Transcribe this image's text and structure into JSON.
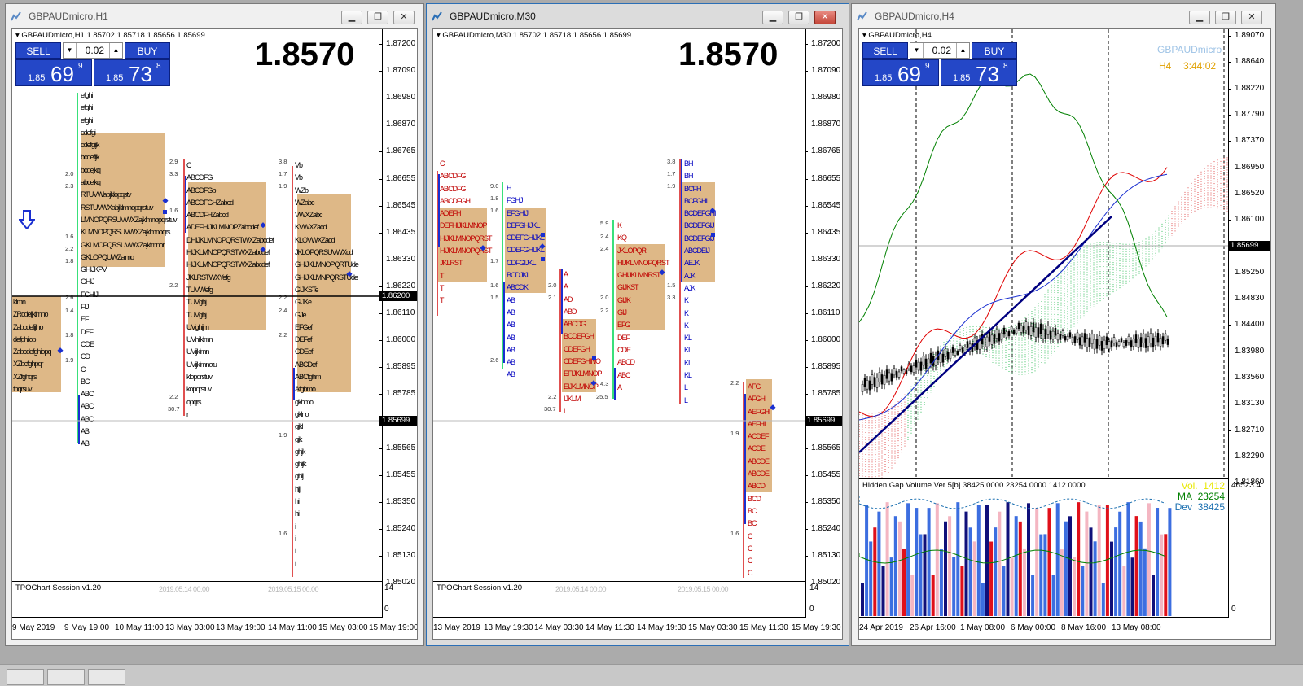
{
  "windows": [
    {
      "title": "GBPAUDmicro,H1",
      "symbol_line": "GBPAUDmicro,H1  1.85702 1.85718 1.85656 1.85699",
      "big_price": "1.8570",
      "prices": [
        "1.87200",
        "1.87090",
        "1.86980",
        "1.86870",
        "1.86765",
        "1.86655",
        "1.86545",
        "1.86435",
        "1.86330",
        "1.86220",
        "1.86110",
        "1.86000",
        "1.85895",
        "1.85785",
        "1.85675",
        "1.85565",
        "1.85455",
        "1.85350",
        "1.85240",
        "1.85130",
        "1.85020"
      ],
      "current_tag": "1.85699",
      "hline_tag": "1.86200",
      "subscale": [
        "14",
        "0"
      ],
      "indicator": "TPOChart Session v1.20",
      "watermark": [
        "2019.05.14 00:00",
        "2019.05.15 00:00"
      ],
      "dates": [
        "9 May 2019",
        "9 May 19:00",
        "10 May 11:00",
        "13 May 03:00",
        "13 May 19:00",
        "14 May 11:00",
        "15 May 03:00",
        "15 May 19:00"
      ]
    },
    {
      "title": "GBPAUDmicro,M30",
      "symbol_line": "GBPAUDmicro,M30  1.85702 1.85718 1.85656 1.85699",
      "big_price": "1.8570",
      "prices": [
        "1.87200",
        "1.87090",
        "1.86980",
        "1.86870",
        "1.86765",
        "1.86655",
        "1.86545",
        "1.86435",
        "1.86330",
        "1.86220",
        "1.86110",
        "1.86000",
        "1.85895",
        "1.85785",
        "1.85675",
        "1.85565",
        "1.85455",
        "1.85350",
        "1.85240",
        "1.85130",
        "1.85020"
      ],
      "current_tag": "1.85699",
      "subscale": [
        "14",
        "0"
      ],
      "indicator": "TPOChart Session v1.20",
      "watermark": [
        "2019.05.14 00:00",
        "2019.05.15 00:00"
      ],
      "dates": [
        "13 May 2019",
        "13 May 19:30",
        "14 May 03:30",
        "14 May 11:30",
        "14 May 19:30",
        "15 May 03:30",
        "15 May 11:30",
        "15 May 19:30"
      ]
    },
    {
      "title": "GBPAUDmicro,H4",
      "symbol_line": "GBPAUDmicro,H4",
      "symbol_name": "GBPAUDmicro",
      "tf_label": "H4",
      "countdown": "3:44:02",
      "prices": [
        "1.89070",
        "1.88640",
        "1.88220",
        "1.87790",
        "1.87370",
        "1.86950",
        "1.86520",
        "1.86100",
        "1.85699",
        "1.85250",
        "1.84830",
        "1.84400",
        "1.83980",
        "1.83560",
        "1.83130",
        "1.82710",
        "1.82290",
        "1.81860"
      ],
      "current_tag": "1.85699",
      "indicator": "Hidden Gap Volume Ver 5[b] 38425.0000 23254.0000 1412.0000",
      "vol_label": "Vol.",
      "vol_value": "1412",
      "ma_label": "MA",
      "ma_value": "23254",
      "dev_label": "Dev",
      "dev_value": "38425",
      "subscale": [
        "46523.4",
        "0"
      ],
      "dates": [
        "24 Apr 2019",
        "26 Apr 16:00",
        "1 May 08:00",
        "6 May 00:00",
        "8 May 16:00",
        "13 May 08:00"
      ]
    }
  ],
  "trade_panel": {
    "sell": "SELL",
    "buy": "BUY",
    "lot": "0.02",
    "bid_small": "1.85",
    "bid_big": "69",
    "bid_pip": "9",
    "ask_small": "1.85",
    "ask_big": "73",
    "ask_pip": "8"
  },
  "h1_tpo": {
    "col1": "efghi\nefghi\nefghi\ncdefgi\ncdefgijk\nbcdefijk\nbcdejkq\nabcejkq\nRTUVWabjklopqstv\nRSTUVWXabjklmnopqrstuv\nLMNOPQRSUVWXZajklmnopqrstuv\nKLMNOPQRSUVWXZajklmnoqrs\nGKLMOPQRSUVWXZajklmnor\nGKLOPQUWZalmo\nGHIJKPV\nGHIJ\nFGHIJ\nFIJ\nEF\nDEF\nCDE\nCD\nC\nBC\nABC\nABC\nABC\nAB\nAB",
    "col0": "klmn\nZRcdeijklmno\nZabcdefijlno\ndefghijop\nZabcdefghiopq\nXZbcfghpqr\nXZfghqrs\nfhqrsuv",
    "col2": "C\nABCDFG\nABCDFGb\nABCDFGHZabcd\nABCDFHZabcd\nADEFHIJKLMNOPZabcdef\nDHIJKLMNOPQRSTWXZabcdef\nHIJKLMNOPQRSTWXZabcdef\nHIJKLMNOPQRSTWXZabcdef\nJKLRSTWXYefg\nTUVWefg\nTUVghj\nTUVghj\nUVghijm\nUVhijklmn\nUVijklmn\nUVijklmnotu\nklopqrstuv\nkopqrstuv\nopqrs\nr",
    "col3": "Vb\nVb\nWZb\nWZabc\nVWXZabc\nKVWXZacd\nKLOVWXZacd\nJKLOPQRSUVWXcd\nGHIJKLMNOPQRTUde\nGHIJKLMNPQRSTUde\nGIJKSTe\nGIJKe\nGJe\nEFGef\nDEFef\nCDEef\nABCDef\nABCfghm\nAfghmo\ngkhmo\ngklno\ngjkl\ngjk\nghjk\nghijk\nghij\nhij\nhi\nhi\ni\ni\ni\ni"
  },
  "m30_tpo": {
    "c1": "C\nABCDFG\nABCDFG\nABCDFGH\nADEFH\nDEFHIJKLMNOP\nHIJKLMNOPQRST\nHIJKLMNOPQRST\nJKLRST\nT\nT\nT",
    "c2": "H\nFGHJ\nEFGHIJ\nDEFGHIJKL\nCDEFGHIJKL\nCDEFGHIJKL\nCDFGIJKL\nBCDJKL\nABCDK\nAB\nAB\nAB\nAB\nAB\nAB\nAB",
    "c3": "A\nA\nAD\nABD\nABCDG\nBCDEFGH\nCDEFGH\nCDEFGHINO\nEFIJKLMNOP\nEIJKLMNOP\nIJKLM\nL",
    "c4": "K\nKQ\nJKLOPQR\nHIJKLMNOPQRST\nGHIJKLMNRST\nGIJKST\nGIJK\nGIJ\nEFG\nDEF\nCDE\nABCD\nABC\nA",
    "c5": "BH\nBH\nBCFH\nBCFGHI\nBCDEFGHI\nBCDEFGIJ\nBCDEFGIJ\nABCDEIJ\nAEJK\nAJK\nAJK\nK\nK\nK\nKL\nKL\nKL\nKL\nL\nL",
    "c6": "AFG\nAFGH\nAEFGHI\nAEFHI\nACDEF\nACDE\nABCDE\nABCDE\nABCD\nBCD\nBC\nBC\nC\nC\nC\nC\nC"
  },
  "colors": {
    "buy_sell_bg": "#2447c7",
    "tpo_box": "#deb887",
    "ask_line": "#c00000",
    "countdown": "#e0a000",
    "vol": "#e8e800",
    "ma": "#008000",
    "dev": "#0000ff"
  }
}
